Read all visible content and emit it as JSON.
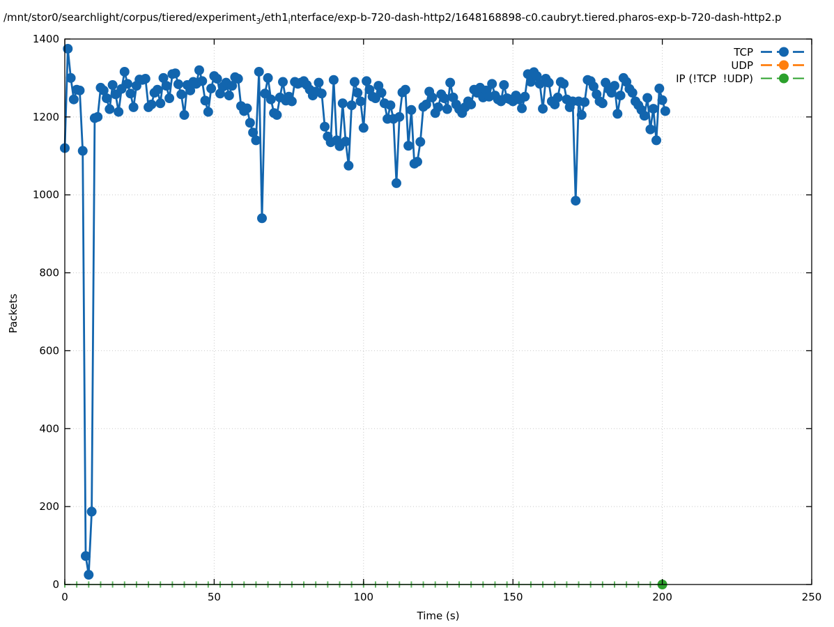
{
  "title": {
    "part1": "/mnt/stor0/searchlight/corpus/tiered/experiment",
    "sub1": "3",
    "part2": "/eth1",
    "sub2": "i",
    "part3": "nterface/exp-b-720-dash-http2/1648168898-c0.caubryt.tiered.pharos-exp-b-720-dash-http2.p"
  },
  "chart_data": {
    "type": "line",
    "title": "/mnt/stor0/searchlight/corpus/tiered/experiment3/eth1interface/exp-b-720-dash-http2/1648168898-c0.caubryt.tiered.pharos-exp-b-720-dash-http2.p",
    "xlabel": "Time (s)",
    "ylabel": "Packets",
    "xlim": [
      0,
      250
    ],
    "ylim": [
      0,
      1400
    ],
    "xticks": [
      0,
      50,
      100,
      150,
      200,
      250
    ],
    "yticks": [
      0,
      200,
      400,
      600,
      800,
      1000,
      1200,
      1400
    ],
    "grid": "dotted",
    "legend_position": "top-right",
    "series": [
      {
        "name": "TCP",
        "color": "#1265ae",
        "marker": "circle",
        "marker_radius": 7,
        "line_width": 2.8,
        "x_start": 0,
        "x_step": 1,
        "y": [
          1120,
          1375,
          1300,
          1245,
          1270,
          1268,
          1113,
          73,
          25,
          187,
          1197,
          1200,
          1275,
          1268,
          1248,
          1220,
          1282,
          1258,
          1213,
          1272,
          1316,
          1285,
          1260,
          1225,
          1280,
          1296,
          1295,
          1298,
          1225,
          1232,
          1262,
          1270,
          1235,
          1300,
          1280,
          1248,
          1310,
          1312,
          1284,
          1258,
          1205,
          1282,
          1268,
          1290,
          1285,
          1320,
          1292,
          1242,
          1213,
          1273,
          1305,
          1298,
          1260,
          1278,
          1288,
          1255,
          1280,
          1302,
          1298,
          1228,
          1215,
          1222,
          1185,
          1160,
          1140,
          1316,
          940,
          1260,
          1300,
          1245,
          1210,
          1205,
          1250,
          1290,
          1242,
          1252,
          1240,
          1290,
          1285,
          1288,
          1292,
          1282,
          1270,
          1255,
          1265,
          1288,
          1260,
          1175,
          1150,
          1135,
          1295,
          1140,
          1125,
          1235,
          1137,
          1075,
          1230,
          1290,
          1262,
          1240,
          1172,
          1292,
          1270,
          1252,
          1248,
          1280,
          1262,
          1235,
          1195,
          1230,
          1195,
          1030,
          1200,
          1263,
          1270,
          1126,
          1218,
          1080,
          1085,
          1136,
          1226,
          1232,
          1265,
          1250,
          1210,
          1225,
          1258,
          1248,
          1220,
          1288,
          1250,
          1232,
          1220,
          1210,
          1225,
          1240,
          1232,
          1270,
          1262,
          1275,
          1250,
          1268,
          1252,
          1285,
          1255,
          1245,
          1240,
          1282,
          1248,
          1245,
          1240,
          1255,
          1245,
          1222,
          1252,
          1310,
          1290,
          1315,
          1305,
          1285,
          1221,
          1298,
          1288,
          1240,
          1232,
          1250,
          1290,
          1285,
          1245,
          1225,
          1240,
          985,
          1240,
          1205,
          1238,
          1295,
          1292,
          1278,
          1258,
          1240,
          1235,
          1288,
          1272,
          1262,
          1280,
          1208,
          1255,
          1300,
          1290,
          1272,
          1262,
          1240,
          1230,
          1218,
          1203,
          1249,
          1168,
          1221,
          1140,
          1273,
          1243,
          1215
        ]
      },
      {
        "name": "UDP",
        "color": "#ff7f0e",
        "marker": "circle",
        "marker_radius": 7,
        "line_width": 2.8,
        "x_start": 0,
        "x_step": 1,
        "y": []
      },
      {
        "name": "IP (!TCP  !UDP)",
        "color": "#2ca02c",
        "marker": "vdash",
        "marker_radius": 4.5,
        "last_point_marker": "circle",
        "last_point_radius": 7,
        "line_width": 1.5,
        "x_start": 0,
        "x_step": 4,
        "y": [
          0,
          0,
          0,
          0,
          0,
          0,
          0,
          0,
          0,
          0,
          0,
          0,
          0,
          0,
          0,
          0,
          0,
          0,
          0,
          0,
          0,
          0,
          0,
          0,
          0,
          0,
          0,
          0,
          0,
          0,
          0,
          0,
          0,
          0,
          0,
          0,
          0,
          0,
          0,
          0,
          0,
          0,
          0,
          0,
          0,
          0,
          0,
          0,
          0,
          0,
          0
        ]
      }
    ]
  },
  "colors": {
    "tcp": "#1265ae",
    "udp": "#ff7f0e",
    "ip_other": "#2ca02c",
    "grid": "#c8c8c8",
    "axis": "#000000"
  }
}
